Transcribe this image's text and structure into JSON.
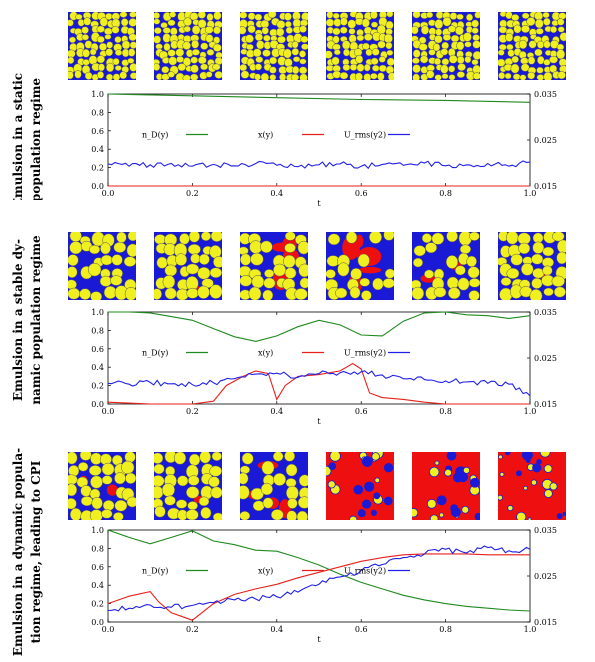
{
  "colors": {
    "thumb_background_static": "#1a1ad6",
    "thumb_background_red": "#ee1010",
    "droplet_fill": "#f0f020",
    "droplet_edge": "#555555",
    "series_np": "#1f8a1f",
    "series_x": "#e8201a",
    "series_urms": "#2020e8"
  },
  "rows": [
    {
      "label_line1": "Emulsion in a static",
      "label_line2": "population regime",
      "thumbnails": [
        {
          "background": "blue",
          "red_fraction": 0.0
        },
        {
          "background": "blue",
          "red_fraction": 0.0
        },
        {
          "background": "blue",
          "red_fraction": 0.0
        },
        {
          "background": "blue",
          "red_fraction": 0.0
        },
        {
          "background": "blue",
          "red_fraction": 0.0
        },
        {
          "background": "blue",
          "red_fraction": 0.0
        }
      ]
    },
    {
      "label_line1": "Emulsion in a stable dy-",
      "label_line2": "namic population regime",
      "thumbnails": [
        {
          "background": "blue",
          "red_fraction": 0.05
        },
        {
          "background": "blue",
          "red_fraction": 0.05
        },
        {
          "background": "blue",
          "red_fraction": 0.35
        },
        {
          "background": "blue",
          "red_fraction": 0.45
        },
        {
          "background": "blue",
          "red_fraction": 0.2
        },
        {
          "background": "blue",
          "red_fraction": 0.02
        }
      ]
    },
    {
      "label_line1": "Emulsion in a dynamic popula-",
      "label_line2": "tion regime, leading to CPI",
      "thumbnails": [
        {
          "background": "blue",
          "red_fraction": 0.15
        },
        {
          "background": "blue",
          "red_fraction": 0.1
        },
        {
          "background": "blue",
          "red_fraction": 0.4
        },
        {
          "background": "red",
          "red_fraction": 0.85
        },
        {
          "background": "red",
          "red_fraction": 0.85
        },
        {
          "background": "red",
          "red_fraction": 0.85
        }
      ]
    }
  ],
  "chart_data": [
    {
      "type": "line",
      "xlabel": "t",
      "xlim": [
        0,
        1
      ],
      "ylim": [
        0,
        1
      ],
      "y2lim": [
        0.015,
        0.035
      ],
      "x_ticks": [
        "0.0",
        "0.2",
        "0.4",
        "0.6",
        "0.8",
        "1.0"
      ],
      "y_ticks": [
        "0.0",
        "0.2",
        "0.4",
        "0.6",
        "0.8",
        "1.0"
      ],
      "y2_ticks": [
        "0.015",
        "0.025",
        "0.035"
      ],
      "legend": [
        "n_D(y)",
        "x(y)",
        "U_rms(y2)"
      ],
      "series": [
        {
          "name": "n_D(y)",
          "axis": "y",
          "x": [
            0.0,
            0.2,
            0.4,
            0.6,
            0.8,
            1.0
          ],
          "y": [
            1.0,
            0.98,
            0.96,
            0.94,
            0.93,
            0.91
          ]
        },
        {
          "name": "x(y)",
          "axis": "y",
          "x": [
            0.0,
            0.2,
            0.4,
            0.6,
            0.8,
            1.0
          ],
          "y": [
            0.0,
            0.0,
            0.0,
            0.0,
            0.0,
            0.0
          ]
        },
        {
          "name": "U_rms(y2)",
          "axis": "y2",
          "x": [
            0.0,
            0.05,
            0.1,
            0.15,
            0.2,
            0.25,
            0.3,
            0.35,
            0.4,
            0.45,
            0.5,
            0.55,
            0.6,
            0.65,
            0.7,
            0.75,
            0.8,
            0.85,
            0.9,
            0.95,
            1.0
          ],
          "y": [
            0.0198,
            0.0193,
            0.0196,
            0.0199,
            0.0193,
            0.0197,
            0.0194,
            0.0199,
            0.0195,
            0.0192,
            0.0196,
            0.0198,
            0.0193,
            0.0197,
            0.0195,
            0.02,
            0.0194,
            0.0196,
            0.0199,
            0.0193,
            0.0202
          ]
        }
      ]
    },
    {
      "type": "line",
      "xlabel": "t",
      "xlim": [
        0,
        1
      ],
      "ylim": [
        0,
        1
      ],
      "y2lim": [
        0.015,
        0.035
      ],
      "x_ticks": [
        "0.0",
        "0.2",
        "0.4",
        "0.6",
        "0.8",
        "1.0"
      ],
      "y_ticks": [
        "0.0",
        "0.2",
        "0.4",
        "0.6",
        "0.8",
        "1.0"
      ],
      "y2_ticks": [
        "0.015",
        "0.025",
        "0.035"
      ],
      "legend": [
        "n_D(y)",
        "x(y)",
        "U_rms(y2)"
      ],
      "series": [
        {
          "name": "n_D(y)",
          "axis": "y",
          "x": [
            0.0,
            0.05,
            0.1,
            0.15,
            0.2,
            0.25,
            0.3,
            0.35,
            0.4,
            0.45,
            0.5,
            0.55,
            0.6,
            0.65,
            0.7,
            0.75,
            0.8,
            0.85,
            0.9,
            0.95,
            1.0
          ],
          "y": [
            1.0,
            1.0,
            0.99,
            0.95,
            0.91,
            0.82,
            0.73,
            0.68,
            0.74,
            0.84,
            0.91,
            0.86,
            0.75,
            0.74,
            0.9,
            0.99,
            1.0,
            0.97,
            0.96,
            0.93,
            0.96
          ]
        },
        {
          "name": "x(y)",
          "axis": "y",
          "x": [
            0.0,
            0.05,
            0.1,
            0.15,
            0.2,
            0.25,
            0.28,
            0.32,
            0.35,
            0.38,
            0.4,
            0.42,
            0.45,
            0.5,
            0.55,
            0.58,
            0.6,
            0.62,
            0.65,
            0.7,
            0.75,
            0.8,
            1.0
          ],
          "y": [
            0.02,
            0.01,
            0.0,
            0.0,
            0.0,
            0.03,
            0.2,
            0.3,
            0.36,
            0.33,
            0.05,
            0.2,
            0.3,
            0.32,
            0.36,
            0.44,
            0.38,
            0.12,
            0.07,
            0.05,
            0.02,
            0.0,
            0.0
          ]
        },
        {
          "name": "U_rms(y2)",
          "axis": "y2",
          "x": [
            0.0,
            0.05,
            0.1,
            0.15,
            0.2,
            0.25,
            0.3,
            0.35,
            0.4,
            0.45,
            0.5,
            0.55,
            0.6,
            0.65,
            0.7,
            0.75,
            0.8,
            0.85,
            0.9,
            0.95,
            1.0
          ],
          "y": [
            0.0195,
            0.0193,
            0.0197,
            0.0194,
            0.0192,
            0.0196,
            0.0205,
            0.0215,
            0.0217,
            0.0208,
            0.0216,
            0.0218,
            0.022,
            0.0213,
            0.0205,
            0.0203,
            0.02,
            0.0198,
            0.0195,
            0.0193,
            0.0168
          ]
        }
      ]
    },
    {
      "type": "line",
      "xlabel": "t",
      "xlim": [
        0,
        1
      ],
      "ylim": [
        0,
        1
      ],
      "y2lim": [
        0.015,
        0.035
      ],
      "x_ticks": [
        "0.0",
        "0.2",
        "0.4",
        "0.6",
        "0.8",
        "1.0"
      ],
      "y_ticks": [
        "0.0",
        "0.2",
        "0.4",
        "0.6",
        "0.8",
        "1.0"
      ],
      "y2_ticks": [
        "0.015",
        "0.025",
        "0.035"
      ],
      "legend": [
        "n_D(y)",
        "x(y)",
        "U_rms(y2)"
      ],
      "series": [
        {
          "name": "n_D(y)",
          "axis": "y",
          "x": [
            0.0,
            0.05,
            0.1,
            0.15,
            0.2,
            0.25,
            0.3,
            0.35,
            0.4,
            0.45,
            0.5,
            0.55,
            0.6,
            0.65,
            0.7,
            0.75,
            0.8,
            0.85,
            0.9,
            0.95,
            1.0
          ],
          "y": [
            1.0,
            0.92,
            0.85,
            0.92,
            0.99,
            0.88,
            0.84,
            0.78,
            0.77,
            0.7,
            0.62,
            0.52,
            0.43,
            0.36,
            0.29,
            0.24,
            0.2,
            0.17,
            0.15,
            0.13,
            0.12
          ]
        },
        {
          "name": "x(y)",
          "axis": "y",
          "x": [
            0.0,
            0.05,
            0.1,
            0.12,
            0.15,
            0.2,
            0.25,
            0.3,
            0.35,
            0.4,
            0.45,
            0.5,
            0.55,
            0.6,
            0.65,
            0.7,
            0.75,
            0.8,
            0.85,
            0.9,
            0.95,
            1.0
          ],
          "y": [
            0.2,
            0.28,
            0.33,
            0.22,
            0.1,
            0.02,
            0.2,
            0.3,
            0.36,
            0.41,
            0.48,
            0.54,
            0.6,
            0.66,
            0.7,
            0.73,
            0.74,
            0.74,
            0.74,
            0.73,
            0.73,
            0.73
          ]
        },
        {
          "name": "U_rms(y2)",
          "axis": "y2",
          "x": [
            0.0,
            0.05,
            0.1,
            0.15,
            0.2,
            0.25,
            0.3,
            0.35,
            0.4,
            0.45,
            0.5,
            0.55,
            0.6,
            0.65,
            0.7,
            0.75,
            0.8,
            0.85,
            0.9,
            0.95,
            1.0
          ],
          "y": [
            0.0175,
            0.018,
            0.0187,
            0.0182,
            0.0186,
            0.0192,
            0.0198,
            0.02,
            0.0205,
            0.0215,
            0.0232,
            0.0248,
            0.0262,
            0.0275,
            0.029,
            0.0298,
            0.0308,
            0.03,
            0.0312,
            0.0305,
            0.0308
          ]
        }
      ]
    }
  ]
}
